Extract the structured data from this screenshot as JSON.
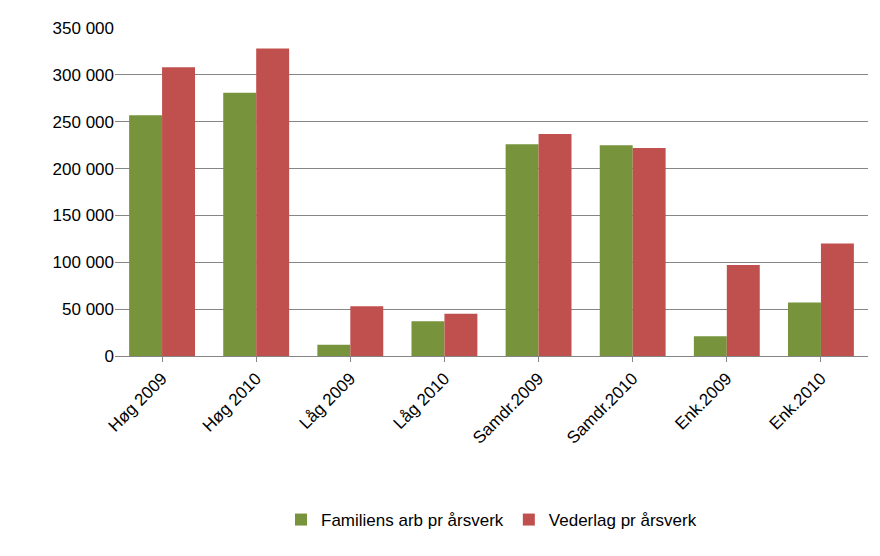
{
  "chart_data": {
    "type": "bar",
    "categories": [
      "Høg 2009",
      "Høg 2010",
      "Låg 2009",
      "Låg 2010",
      "Samdr.2009",
      "Samdr.2010",
      "Enk.2009",
      "Enk.2010"
    ],
    "series": [
      {
        "name": "Familiens arb pr årsverk",
        "color": "#77933c",
        "values": [
          257000,
          281000,
          12000,
          37000,
          226000,
          225000,
          21000,
          57000
        ]
      },
      {
        "name": "Vederlag pr årsverk",
        "color": "#c0504d",
        "values": [
          308000,
          328000,
          53000,
          45000,
          237000,
          222000,
          97000,
          120000
        ]
      }
    ],
    "ylim": [
      0,
      350000
    ],
    "yticks": [
      0,
      {
        "value": 50000,
        "label": "50 000"
      },
      {
        "value": 100000,
        "label": "100 000"
      },
      {
        "value": 150000,
        "label": "150 000"
      },
      {
        "value": 200000,
        "label": "200 000"
      },
      {
        "value": 250000,
        "label": "250 000"
      },
      {
        "value": 300000,
        "label": "300 000"
      },
      {
        "value": 350000,
        "label": "350 000"
      }
    ],
    "grid": true,
    "legend": "bottom"
  }
}
